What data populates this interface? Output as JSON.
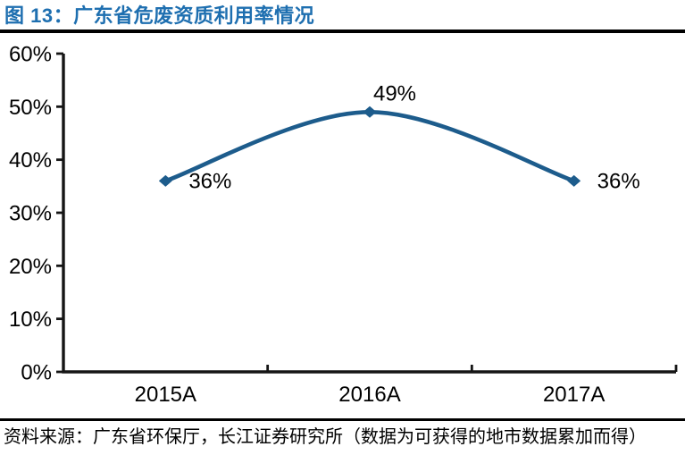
{
  "header": {
    "title": "图 13：广东省危废资质利用率情况"
  },
  "footer": {
    "source": "资料来源：广东省环保厅，长江证券研究所（数据为可获得的地市数据累加而得）"
  },
  "colors": {
    "title_text": "#1E6FB0",
    "series_line": "#1D5C8C",
    "axis": "#151515",
    "divider": "#000000",
    "label_text": "#000000"
  },
  "chart_data": {
    "type": "line",
    "smooth": true,
    "categories": [
      "2015A",
      "2016A",
      "2017A"
    ],
    "values": [
      36,
      49,
      36
    ],
    "point_labels": [
      "36%",
      "49%",
      "36%"
    ],
    "label_placement": [
      "right",
      "above",
      "right"
    ],
    "title": "",
    "xlabel": "",
    "ylabel": "",
    "ylim": [
      0,
      60
    ],
    "ytick_step": 10,
    "ytick_suffix": "%",
    "grid": false,
    "legend": false,
    "marker": "diamond"
  }
}
